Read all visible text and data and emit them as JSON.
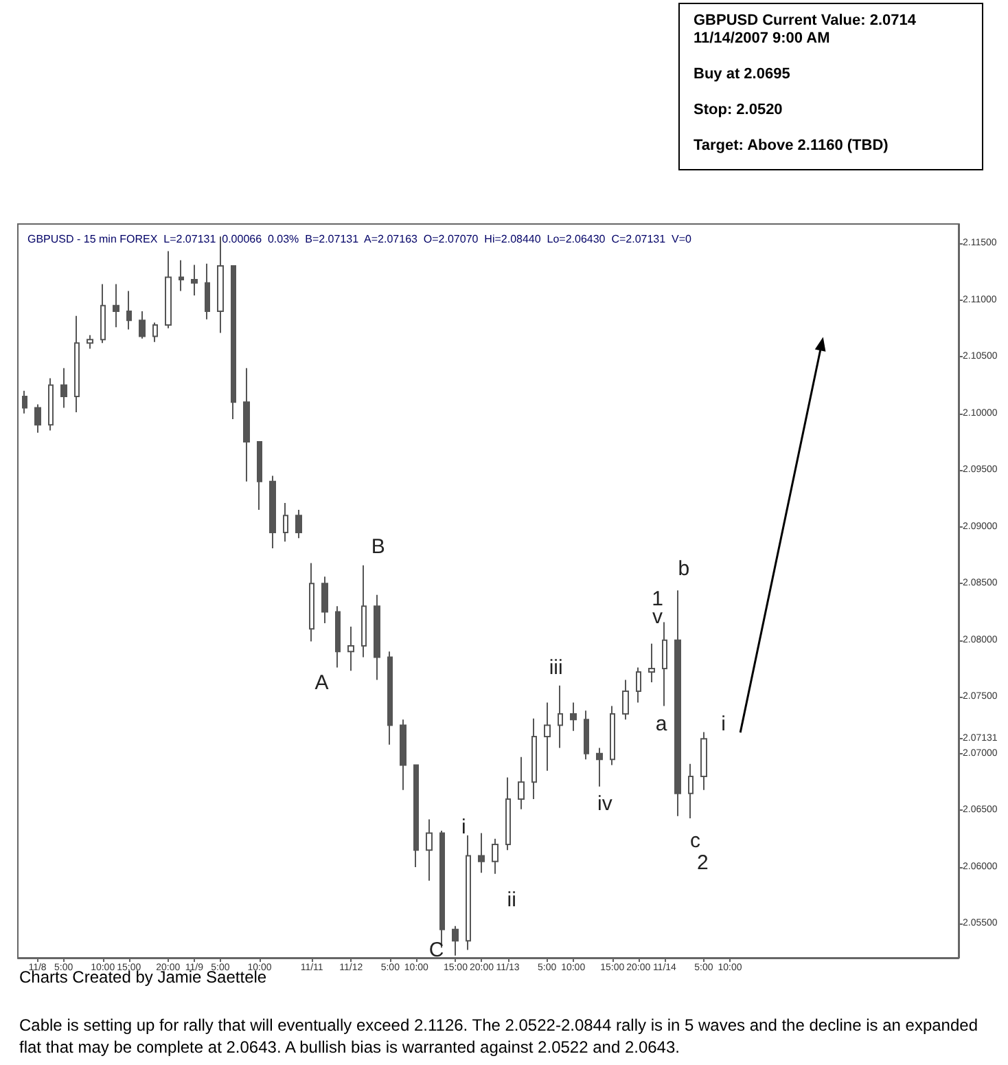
{
  "chart_data": {
    "type": "candlestick",
    "title": "GBPUSD - 15 min FOREX  L=2.07131  0.00066  0.03%  B=2.07131  A=2.07163  O=2.07070  Hi=2.08440  Lo=2.06430  C=2.07131  V=0",
    "color": "#555555",
    "categories": [
      null,
      "11/8",
      null,
      "5:00",
      null,
      null,
      "10:00",
      null,
      "15:00",
      null,
      null,
      "20:00",
      null,
      "11/9",
      null,
      "5:00",
      null,
      null,
      "10:00",
      null,
      null,
      null,
      "11/11",
      null,
      null,
      "11/12",
      null,
      null,
      "5:00",
      null,
      "10:00",
      null,
      null,
      "15:00",
      null,
      "20:00",
      null,
      "11/13",
      null,
      null,
      "5:00",
      null,
      "10:00",
      null,
      null,
      "15:00",
      null,
      "20:00",
      null,
      "11/14",
      null,
      null,
      "5:00",
      null,
      "10:00",
      null,
      null,
      null,
      null,
      null,
      null,
      null,
      null,
      null,
      null,
      null,
      null,
      null,
      null,
      null,
      null,
      null
    ],
    "ohlc": [
      [
        2.1015,
        2.102,
        2.1,
        2.1005
      ],
      [
        2.1005,
        2.1008,
        2.0983,
        2.099
      ],
      [
        2.099,
        2.1031,
        2.0985,
        2.1025
      ],
      [
        2.1025,
        2.104,
        2.1005,
        2.1015
      ],
      [
        2.1015,
        2.1086,
        2.1001,
        2.1062
      ],
      [
        2.1062,
        2.1069,
        2.1057,
        2.1065
      ],
      [
        2.1065,
        2.1114,
        2.1062,
        2.1095
      ],
      [
        2.1095,
        2.1114,
        2.1076,
        2.109
      ],
      [
        2.109,
        2.1108,
        2.1074,
        2.1082
      ],
      [
        2.1082,
        2.109,
        2.1066,
        2.1068
      ],
      [
        2.1068,
        2.108,
        2.1063,
        2.1078
      ],
      [
        2.1078,
        2.1143,
        2.1075,
        2.112
      ],
      [
        2.112,
        2.1135,
        2.1108,
        2.1118
      ],
      [
        2.1118,
        2.1131,
        2.1104,
        2.1115
      ],
      [
        2.1115,
        2.1132,
        2.1083,
        2.109
      ],
      [
        2.109,
        2.1156,
        2.1071,
        2.113
      ],
      [
        2.113,
        2.113,
        2.0995,
        2.101
      ],
      [
        2.101,
        2.104,
        2.094,
        2.0975
      ],
      [
        2.0975,
        2.0975,
        2.0915,
        2.094
      ],
      [
        2.094,
        2.0945,
        2.0881,
        2.0895
      ],
      [
        2.0895,
        2.0921,
        2.0887,
        2.091
      ],
      [
        2.091,
        2.0915,
        2.089,
        2.0895
      ],
      [
        2.081,
        2.0868,
        2.0799,
        2.085
      ],
      [
        2.085,
        2.0856,
        2.0815,
        2.0825
      ],
      [
        2.0825,
        2.083,
        2.0776,
        2.079
      ],
      [
        2.079,
        2.0812,
        2.0773,
        2.0795
      ],
      [
        2.0795,
        2.0866,
        2.0785,
        2.083
      ],
      [
        2.083,
        2.084,
        2.0765,
        2.0785
      ],
      [
        2.0785,
        2.079,
        2.0708,
        2.0725
      ],
      [
        2.0725,
        2.073,
        2.0668,
        2.069
      ],
      [
        2.069,
        2.069,
        2.06,
        2.0615
      ],
      [
        2.0615,
        2.0642,
        2.0588,
        2.063
      ],
      [
        2.063,
        2.0632,
        2.0529,
        2.0545
      ],
      [
        2.0545,
        2.0548,
        2.0522,
        2.0535
      ],
      [
        2.0535,
        2.0628,
        2.0527,
        2.061
      ],
      [
        2.061,
        2.063,
        2.0595,
        2.0605
      ],
      [
        2.0605,
        2.0625,
        2.0594,
        2.062
      ],
      [
        2.062,
        2.0679,
        2.0615,
        2.066
      ],
      [
        2.066,
        2.0697,
        2.0651,
        2.0675
      ],
      [
        2.0675,
        2.0731,
        2.066,
        2.0715
      ],
      [
        2.0715,
        2.0745,
        2.0685,
        2.0725
      ],
      [
        2.0725,
        2.076,
        2.0705,
        2.0735
      ],
      [
        2.0735,
        2.0745,
        2.072,
        2.073
      ],
      [
        2.073,
        2.0738,
        2.0695,
        2.07
      ],
      [
        2.07,
        2.0705,
        2.0671,
        2.0695
      ],
      [
        2.0695,
        2.0742,
        2.069,
        2.0735
      ],
      [
        2.0735,
        2.0765,
        2.073,
        2.0755
      ],
      [
        2.0755,
        2.0776,
        2.0745,
        2.0772
      ],
      [
        2.0772,
        2.0797,
        2.0763,
        2.0775
      ],
      [
        2.0775,
        2.0816,
        2.0742,
        2.08
      ],
      [
        2.08,
        2.0844,
        2.0645,
        2.0665
      ],
      [
        2.0665,
        2.0691,
        2.0643,
        2.068
      ],
      [
        2.068,
        2.0719,
        2.0668,
        2.07131
      ],
      null,
      null,
      null,
      null,
      null,
      null,
      null,
      null,
      null,
      null,
      null,
      null,
      null,
      null,
      null,
      null,
      null,
      null,
      null
    ],
    "ylim": [
      2.052,
      2.1167
    ],
    "yticks": [
      {
        "value": 2.055,
        "label": "2.05500"
      },
      {
        "value": 2.06,
        "label": "2.06000"
      },
      {
        "value": 2.065,
        "label": "2.06500"
      },
      {
        "value": 2.07,
        "label": "2.07000"
      },
      {
        "value": 2.07131,
        "label": "2.07131"
      },
      {
        "value": 2.075,
        "label": "2.07500"
      },
      {
        "value": 2.08,
        "label": "2.08000"
      },
      {
        "value": 2.085,
        "label": "2.08500"
      },
      {
        "value": 2.09,
        "label": "2.09000"
      },
      {
        "value": 2.095,
        "label": "2.09500"
      },
      {
        "value": 2.1,
        "label": "2.10000"
      },
      {
        "value": 2.105,
        "label": "2.10500"
      },
      {
        "value": 2.11,
        "label": "2.11000"
      },
      {
        "value": 2.115,
        "label": "2.11500"
      }
    ],
    "annotations": [
      "GBPUSD Current Value: 2.0714\n11/14/2007 9:00 AM\n\nBuy at 2.0695\n\nStop: 2.0520\n\nTarget: Above 2.1160 (TBD)",
      "Charts Created by Jamie Saettele",
      "Cable is setting up for rally that will eventually exceed 2.1126.  The 2.0522-2.0844 rally is in 5 waves and the decline is an expanded flat that may be complete at 2.0643.  A bullish bias is warranted against 2.0522 and 2.0643.",
      "A",
      "B",
      "C",
      "i",
      "ii",
      "iii",
      "iv",
      "1",
      "v",
      "b",
      "a",
      "c",
      "2",
      "i"
    ]
  }
}
